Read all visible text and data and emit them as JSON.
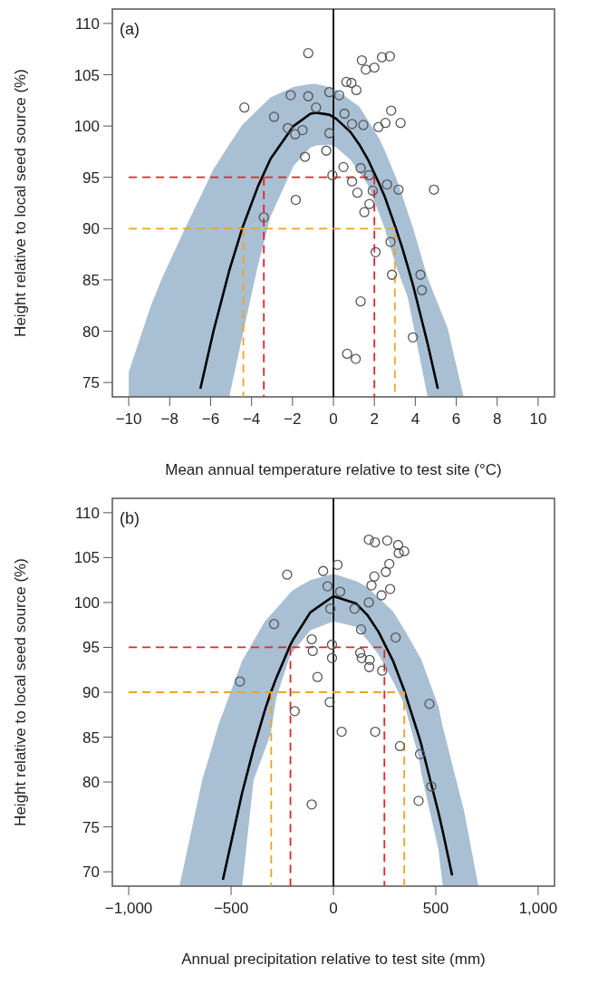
{
  "chart_data": [
    {
      "type": "scatter",
      "annotations": [
        "(a)"
      ],
      "xlabel": "Mean annual temperature relative to test site (°C)",
      "ylabel": "Height relative to local seed source (%)",
      "ref_lines": [
        {
          "axis": "x",
          "value": 0,
          "color": "#000000"
        }
      ],
      "xlim": [
        -10.8,
        10.8
      ],
      "ylim": [
        73.6,
        111.4
      ],
      "xticks": [
        {
          "value": -10,
          "label": "−10"
        },
        {
          "value": -8,
          "label": "−8"
        },
        {
          "value": -6,
          "label": "−6"
        },
        {
          "value": -4,
          "label": "−4"
        },
        {
          "value": -2,
          "label": "−2"
        },
        0,
        2,
        4,
        6,
        8,
        10
      ],
      "yticks": [
        75,
        80,
        85,
        90,
        95,
        100,
        105,
        110
      ],
      "series": [
        {
          "type": "line",
          "color": "#000000",
          "line_style": "solid",
          "x": [
            -10,
            -8.93,
            -8.37,
            -7.11,
            -6.5,
            -5.86,
            -5.09,
            -4.46,
            -3.69,
            -3.07,
            -1.95,
            -1.12,
            -0.84,
            -0.2,
            0.14,
            0.84,
            1.26,
            1.67,
            2.23,
            2.51,
            3.07,
            3.35,
            3.63,
            3.9,
            4.6,
            5.1,
            5.58,
            6.36
          ],
          "values": [
            null,
            null,
            null,
            null,
            74.4,
            80.0,
            85.9,
            90.0,
            94.1,
            96.8,
            100.0,
            101.2,
            101.3,
            101.1,
            100.7,
            99.4,
            98.2,
            96.8,
            94.4,
            93.1,
            89.9,
            88.2,
            86.3,
            84.4,
            78.8,
            74.4,
            null,
            null
          ],
          "upper": [
            76.0,
            82.4,
            85.2,
            90.6,
            93.1,
            95.8,
            98.2,
            100.1,
            101.6,
            102.8,
            103.8,
            104.1,
            104.1,
            103.8,
            103.5,
            102.5,
            101.9,
            100.6,
            98.8,
            97.6,
            94.9,
            93.3,
            91.6,
            90.0,
            85.2,
            82.7,
            80.3,
            73.6
          ],
          "lower": [
            73.6,
            73.6,
            73.6,
            73.6,
            73.6,
            73.6,
            73.6,
            79.4,
            86.4,
            91.2,
            96.1,
            97.9,
            98.1,
            98.2,
            97.9,
            96.7,
            95.5,
            94.3,
            91.5,
            90.0,
            86.3,
            84.8,
            83.3,
            80.6,
            73.6,
            73.6,
            73.6,
            73.6
          ]
        },
        {
          "type": "line",
          "color": "#e3242b",
          "line_style": "dashed",
          "x": [
            -10,
            2,
            2
          ],
          "values": [
            95,
            95,
            73.6
          ]
        },
        {
          "type": "line",
          "color": "#e3242b",
          "line_style": "dashed",
          "x": [
            -3.4,
            -3.4
          ],
          "values": [
            95,
            73.6
          ]
        },
        {
          "type": "line",
          "color": "#f0a322",
          "line_style": "dashed",
          "x": [
            -10,
            3,
            3
          ],
          "values": [
            90,
            90,
            73.6
          ]
        },
        {
          "type": "line",
          "color": "#f0a322",
          "line_style": "dashed",
          "x": [
            -4.4,
            -4.4
          ],
          "values": [
            90,
            73.6
          ]
        },
        {
          "type": "scatter",
          "color": "#555555",
          "marker": "circle",
          "x": [
            -1.23,
            1.39,
            1.58,
            2.0,
            2.37,
            2.76,
            0.63,
            0.88,
            1.12,
            -4.35,
            -2.09,
            -1.23,
            -0.2,
            0.28,
            -0.85,
            -2.9,
            -2.23,
            -1.87,
            -1.51,
            -0.2,
            0.54,
            0.91,
            1.46,
            2.2,
            2.54,
            2.82,
            3.28,
            -1.39,
            -0.35,
            0.49,
            1.33,
            -0.05,
            0.91,
            1.74,
            2.62,
            3.18,
            4.91,
            1.92,
            1.17,
            -1.84,
            1.76,
            1.51,
            -3.4,
            2.79,
            2.06,
            2.86,
            4.25,
            4.32,
            1.33,
            3.88,
            0.67,
            1.09
          ],
          "values": [
            107.1,
            106.4,
            105.5,
            105.7,
            106.7,
            106.8,
            104.3,
            104.2,
            103.5,
            101.8,
            103.0,
            102.9,
            103.3,
            103.0,
            101.8,
            100.9,
            99.8,
            99.2,
            99.6,
            99.3,
            101.2,
            100.2,
            100.1,
            99.9,
            100.3,
            101.5,
            100.3,
            97.0,
            97.6,
            96.0,
            95.9,
            95.2,
            94.6,
            95.2,
            94.3,
            93.8,
            93.8,
            93.7,
            93.5,
            92.8,
            92.4,
            91.6,
            91.1,
            88.7,
            87.7,
            85.5,
            85.5,
            84.0,
            82.9,
            79.4,
            77.8,
            77.3
          ]
        }
      ]
    },
    {
      "type": "scatter",
      "annotations": [
        "(b)"
      ],
      "xlabel": "Annual precipitation relative to test site (mm)",
      "ylabel": "Height relative to local seed source (%)",
      "ref_lines": [
        {
          "axis": "x",
          "value": 0,
          "color": "#000000"
        }
      ],
      "xlim": [
        -1080,
        1080
      ],
      "ylim": [
        68.4,
        111.6
      ],
      "xticks": [
        {
          "value": -1000,
          "label": "−1,000"
        },
        {
          "value": -500,
          "label": "−500"
        },
        0,
        500,
        {
          "value": 1000,
          "label": "1,000"
        }
      ],
      "yticks": [
        70,
        75,
        80,
        85,
        90,
        95,
        100,
        105,
        110
      ],
      "series": [
        {
          "type": "line",
          "color": "#000000",
          "line_style": "solid",
          "x": [
            -752,
            -641,
            -557,
            -540,
            -446,
            -390,
            -335,
            -307,
            -279,
            -210,
            -196,
            -113,
            0,
            110,
            166,
            221,
            291,
            346,
            416,
            430,
            513,
            534,
            580,
            638,
            708
          ],
          "values": [
            null,
            null,
            null,
            69.1,
            78.8,
            83.7,
            88.0,
            89.9,
            91.6,
            95.3,
            95.9,
            98.9,
            100.7,
            99.9,
            98.6,
            96.7,
            93.5,
            90.2,
            85.2,
            84.1,
            76.6,
            74.5,
            69.6,
            null,
            null
          ],
          "upper": [
            68.4,
            80.2,
            86.7,
            87.7,
            93.5,
            95.7,
            97.9,
            98.6,
            99.3,
            101.1,
            101.4,
            102.5,
            103.2,
            102.4,
            101.7,
            100.5,
            99.0,
            97.0,
            94.2,
            93.6,
            88.4,
            86.2,
            82.0,
            76.8,
            68.4
          ],
          "lower": [
            68.4,
            68.4,
            68.4,
            68.4,
            68.4,
            80.2,
            83.6,
            85.3,
            89.4,
            94.2,
            94.6,
            96.9,
            97.9,
            97.3,
            95.8,
            94.2,
            91.2,
            88.7,
            82.8,
            80.9,
            72.5,
            68.4,
            68.4,
            68.4,
            68.4
          ]
        },
        {
          "type": "line",
          "color": "#e3242b",
          "line_style": "dashed",
          "x": [
            -1000,
            249,
            249
          ],
          "values": [
            95,
            95,
            68.4
          ]
        },
        {
          "type": "line",
          "color": "#e3242b",
          "line_style": "dashed",
          "x": [
            -210,
            -210
          ],
          "values": [
            95,
            68.4
          ]
        },
        {
          "type": "line",
          "color": "#f0a322",
          "line_style": "dashed",
          "x": [
            -1000,
            346,
            346
          ],
          "values": [
            90,
            90,
            68.4
          ]
        },
        {
          "type": "line",
          "color": "#f0a322",
          "line_style": "dashed",
          "x": [
            -304,
            -304
          ],
          "values": [
            90,
            68.4
          ]
        },
        {
          "type": "scatter",
          "color": "#555555",
          "marker": "circle",
          "x": [
            173,
            203,
            263,
            316,
            346,
            319,
            273,
            256,
            200,
            186,
            277,
            235,
            -226,
            -50,
            20,
            -29,
            33,
            173,
            103,
            -15,
            -290,
            135,
            304,
            -106,
            -101,
            -7,
            -7,
            131,
            138,
            177,
            175,
            238,
            -78,
            -457,
            -18,
            469,
            -189,
            40,
            204,
            325,
            423,
            478,
            -106,
            416
          ],
          "values": [
            107.0,
            106.7,
            106.9,
            106.4,
            105.7,
            105.5,
            104.3,
            103.4,
            102.9,
            101.9,
            101.5,
            100.8,
            103.1,
            103.5,
            104.2,
            101.8,
            101.2,
            100.0,
            99.3,
            99.3,
            97.6,
            97.0,
            96.1,
            95.9,
            94.6,
            95.3,
            93.8,
            94.4,
            93.8,
            93.6,
            92.8,
            92.4,
            91.7,
            91.2,
            88.9,
            88.7,
            87.9,
            85.6,
            85.6,
            84.0,
            83.1,
            79.5,
            77.5,
            77.9
          ]
        }
      ]
    }
  ]
}
